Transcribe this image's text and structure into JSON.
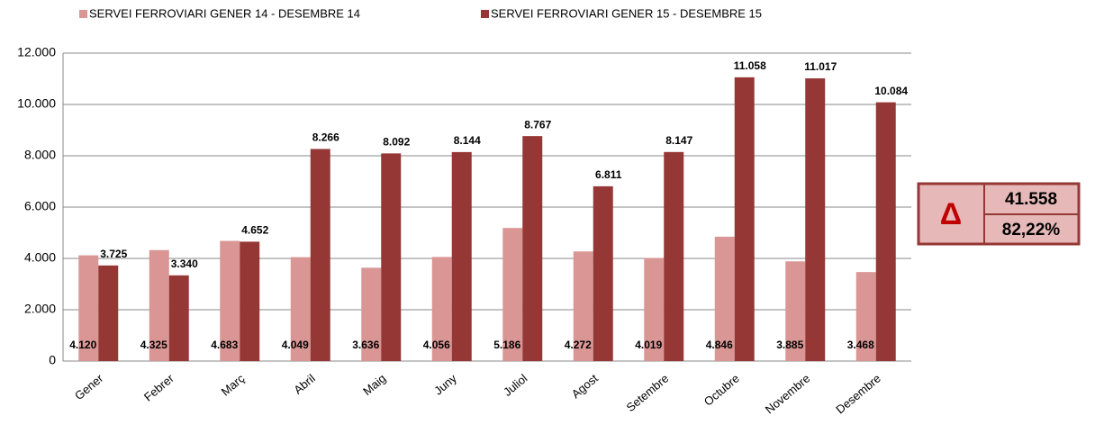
{
  "chart_data": {
    "type": "bar",
    "categories": [
      "Gener",
      "Febrer",
      "Març",
      "Abril",
      "Maig",
      "Juny",
      "Juliol",
      "Agost",
      "Setembre",
      "Octubre",
      "Novembre",
      "Desembre"
    ],
    "series": [
      {
        "name": "SERVEI FERROVIARI GENER 14 - DESEMBRE 14",
        "color": "#d99694",
        "values": [
          4120,
          4325,
          4683,
          4049,
          3636,
          4056,
          5186,
          4272,
          4019,
          4846,
          3885,
          3468
        ],
        "value_labels": [
          "4.120",
          "4.325",
          "4.683",
          "4.049",
          "3.636",
          "4.056",
          "5.186",
          "4.272",
          "4.019",
          "4.846",
          "3.885",
          "3.468"
        ]
      },
      {
        "name": "SERVEI FERROVIARI GENER 15 - DESEMBRE 15",
        "color": "#953735",
        "values": [
          3725,
          3340,
          4652,
          8266,
          8092,
          8144,
          8767,
          6811,
          8147,
          11058,
          11017,
          10084
        ],
        "value_labels": [
          "3.725",
          "3.340",
          "4.652",
          "8.266",
          "8.092",
          "8.144",
          "8.767",
          "6.811",
          "8.147",
          "11.058",
          "11.017",
          "10.084"
        ]
      }
    ],
    "ylim": [
      0,
      12000
    ],
    "yticks": [
      0,
      {
        "value": 2000,
        "label": "2.000"
      },
      {
        "value": 4000,
        "label": "4.000"
      },
      {
        "value": 6000,
        "label": "6.000"
      },
      {
        "value": 8000,
        "label": "8.000"
      },
      {
        "value": 10000,
        "label": "10.000"
      },
      {
        "value": 12000,
        "label": "12.000"
      }
    ],
    "grid": true,
    "legend": "top",
    "summary": {
      "symbol": "Δ",
      "total": "41.558",
      "percent": "82,22%"
    }
  }
}
